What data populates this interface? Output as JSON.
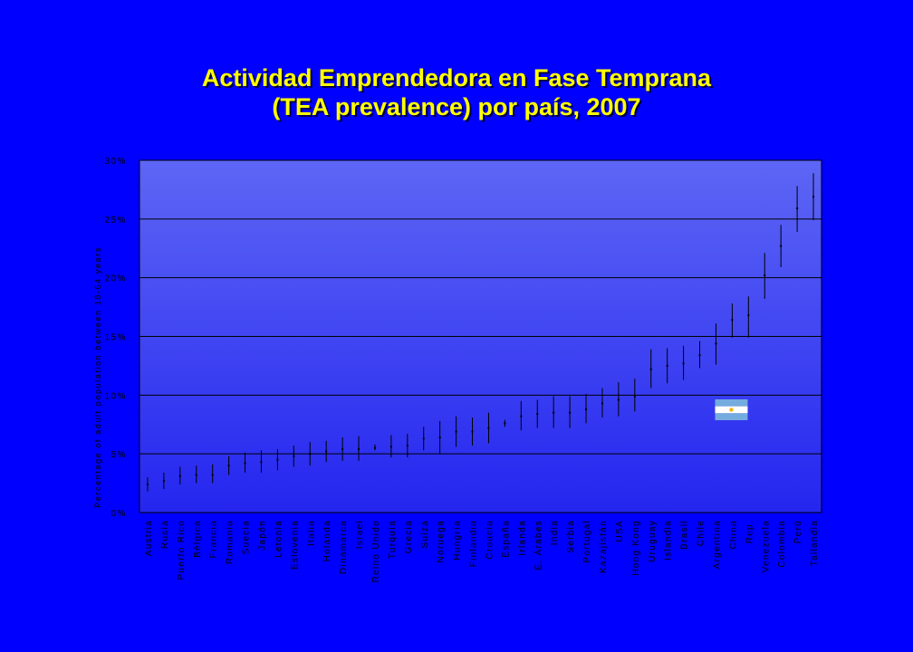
{
  "title": {
    "line1": "Actividad Emprendedora en Fase Temprana",
    "line2": "(TEA prevalence) por país, 2007"
  },
  "colors": {
    "page_background": "#0000ff",
    "title": "#ffff00",
    "plot_top": "#5d66f5",
    "plot_bottom": "#2426ef",
    "grid": "#000000",
    "flag_blue": "#74acdf",
    "flag_white": "#ffffff",
    "flag_sun": "#f6b40e"
  },
  "flag": {
    "icon": "argentina-flag-icon",
    "near_category": "Argentina"
  },
  "chart_data": {
    "type": "errorbar",
    "ylabel": "Percentage of adult population between 18-64 years",
    "ylim": [
      0,
      30
    ],
    "yticks": [
      0,
      5,
      10,
      15,
      20,
      25,
      30
    ],
    "ytick_labels": [
      "0%",
      "5%",
      "10%",
      "15%",
      "20%",
      "25%",
      "30%"
    ],
    "grid": "horizontal",
    "categories": [
      "Austria",
      "Rusia",
      "Puerto Rico",
      "Bélgica",
      "Francia",
      "Romania",
      "Suecia",
      "Japón",
      "Letonia",
      "Eslovenia",
      "Italia",
      "Holanda",
      "Dinamarca",
      "Israel",
      "Reino Unido",
      "Turquía",
      "Grecia",
      "Suiza",
      "Noruega",
      "Hungría",
      "Finlandia",
      "Croacia",
      "España",
      "Irlanda",
      "E. Árabes",
      "India",
      "Serbia",
      "Portugal",
      "Kazajistán",
      "USA",
      "Hong Kong",
      "Uruguay",
      "Islandia",
      "Brasil",
      "Chile",
      "Argentina",
      "China",
      "Rep.",
      "Venezuela",
      "Colombia",
      "Perú",
      "Tailandia"
    ],
    "values": [
      2.4,
      2.7,
      3.1,
      3.2,
      3.2,
      4.0,
      4.2,
      4.3,
      4.5,
      4.8,
      5.0,
      5.2,
      5.4,
      5.4,
      5.5,
      5.6,
      5.7,
      6.3,
      6.4,
      6.9,
      6.9,
      7.2,
      7.6,
      8.2,
      8.4,
      8.5,
      8.5,
      8.8,
      9.3,
      9.6,
      9.9,
      12.2,
      12.5,
      12.7,
      13.4,
      14.4,
      16.4,
      16.8,
      20.2,
      22.7,
      25.9,
      26.9
    ],
    "lower": [
      1.8,
      2.0,
      2.4,
      2.5,
      2.5,
      3.2,
      3.4,
      3.4,
      3.6,
      3.9,
      4.0,
      4.3,
      4.4,
      4.4,
      5.3,
      4.7,
      4.7,
      5.3,
      5.0,
      5.6,
      5.7,
      5.9,
      7.3,
      7.0,
      7.2,
      7.2,
      7.2,
      7.6,
      8.1,
      8.2,
      8.6,
      10.6,
      11.0,
      11.3,
      12.3,
      12.6,
      14.9,
      14.9,
      18.2,
      20.9,
      23.9,
      24.9
    ],
    "upper": [
      3.0,
      3.4,
      3.9,
      4.0,
      4.1,
      4.8,
      5.1,
      5.3,
      5.4,
      5.7,
      6.0,
      6.1,
      6.4,
      6.5,
      5.8,
      6.6,
      6.7,
      7.3,
      7.8,
      8.2,
      8.1,
      8.5,
      7.9,
      9.5,
      9.6,
      9.9,
      9.9,
      10.1,
      10.6,
      11.1,
      11.4,
      13.9,
      14.0,
      14.2,
      14.6,
      16.1,
      17.8,
      18.4,
      22.1,
      24.5,
      27.8,
      28.9
    ]
  }
}
